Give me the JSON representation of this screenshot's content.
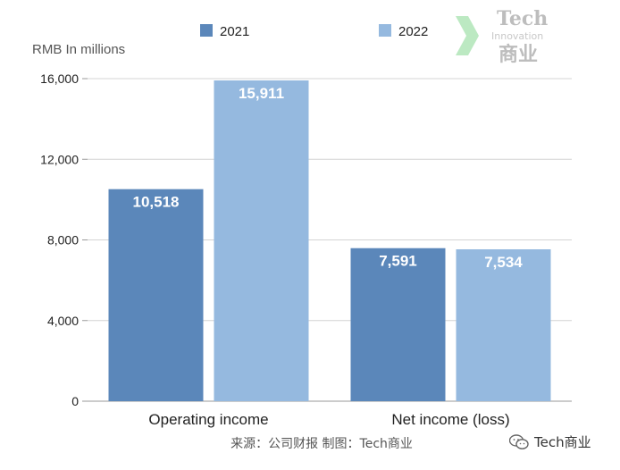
{
  "chart_data": {
    "type": "bar",
    "categories": [
      "Operating income",
      "Net income (loss)"
    ],
    "series": [
      {
        "name": "2021",
        "values": [
          10518,
          7591
        ],
        "labels": [
          "10,518",
          "7,591"
        ],
        "color": "#5b87ba"
      },
      {
        "name": "2022",
        "values": [
          15911,
          7534
        ],
        "labels": [
          "15,911",
          "7,534"
        ],
        "color": "#95b9df"
      }
    ],
    "ylabel": "RMB In millions",
    "ylim": [
      0,
      16000
    ],
    "yticks": [
      0,
      4000,
      8000,
      12000,
      16000
    ],
    "ytick_labels": [
      "0",
      "4,000",
      "8,000",
      "12,000",
      "16,000"
    ],
    "grid": true,
    "legend": "top-center"
  },
  "source_note": "来源：公司财报 制图：Tech商业",
  "watermark": {
    "line1": "Tech",
    "line2": "Innovation",
    "line3": "商业"
  },
  "wechat_label": "Tech商业",
  "colors": {
    "grid": "#d4d4d4",
    "axis": "#9a9a9a",
    "text": "#222222",
    "muted": "#555555",
    "watermark": "#b9b9b9"
  }
}
